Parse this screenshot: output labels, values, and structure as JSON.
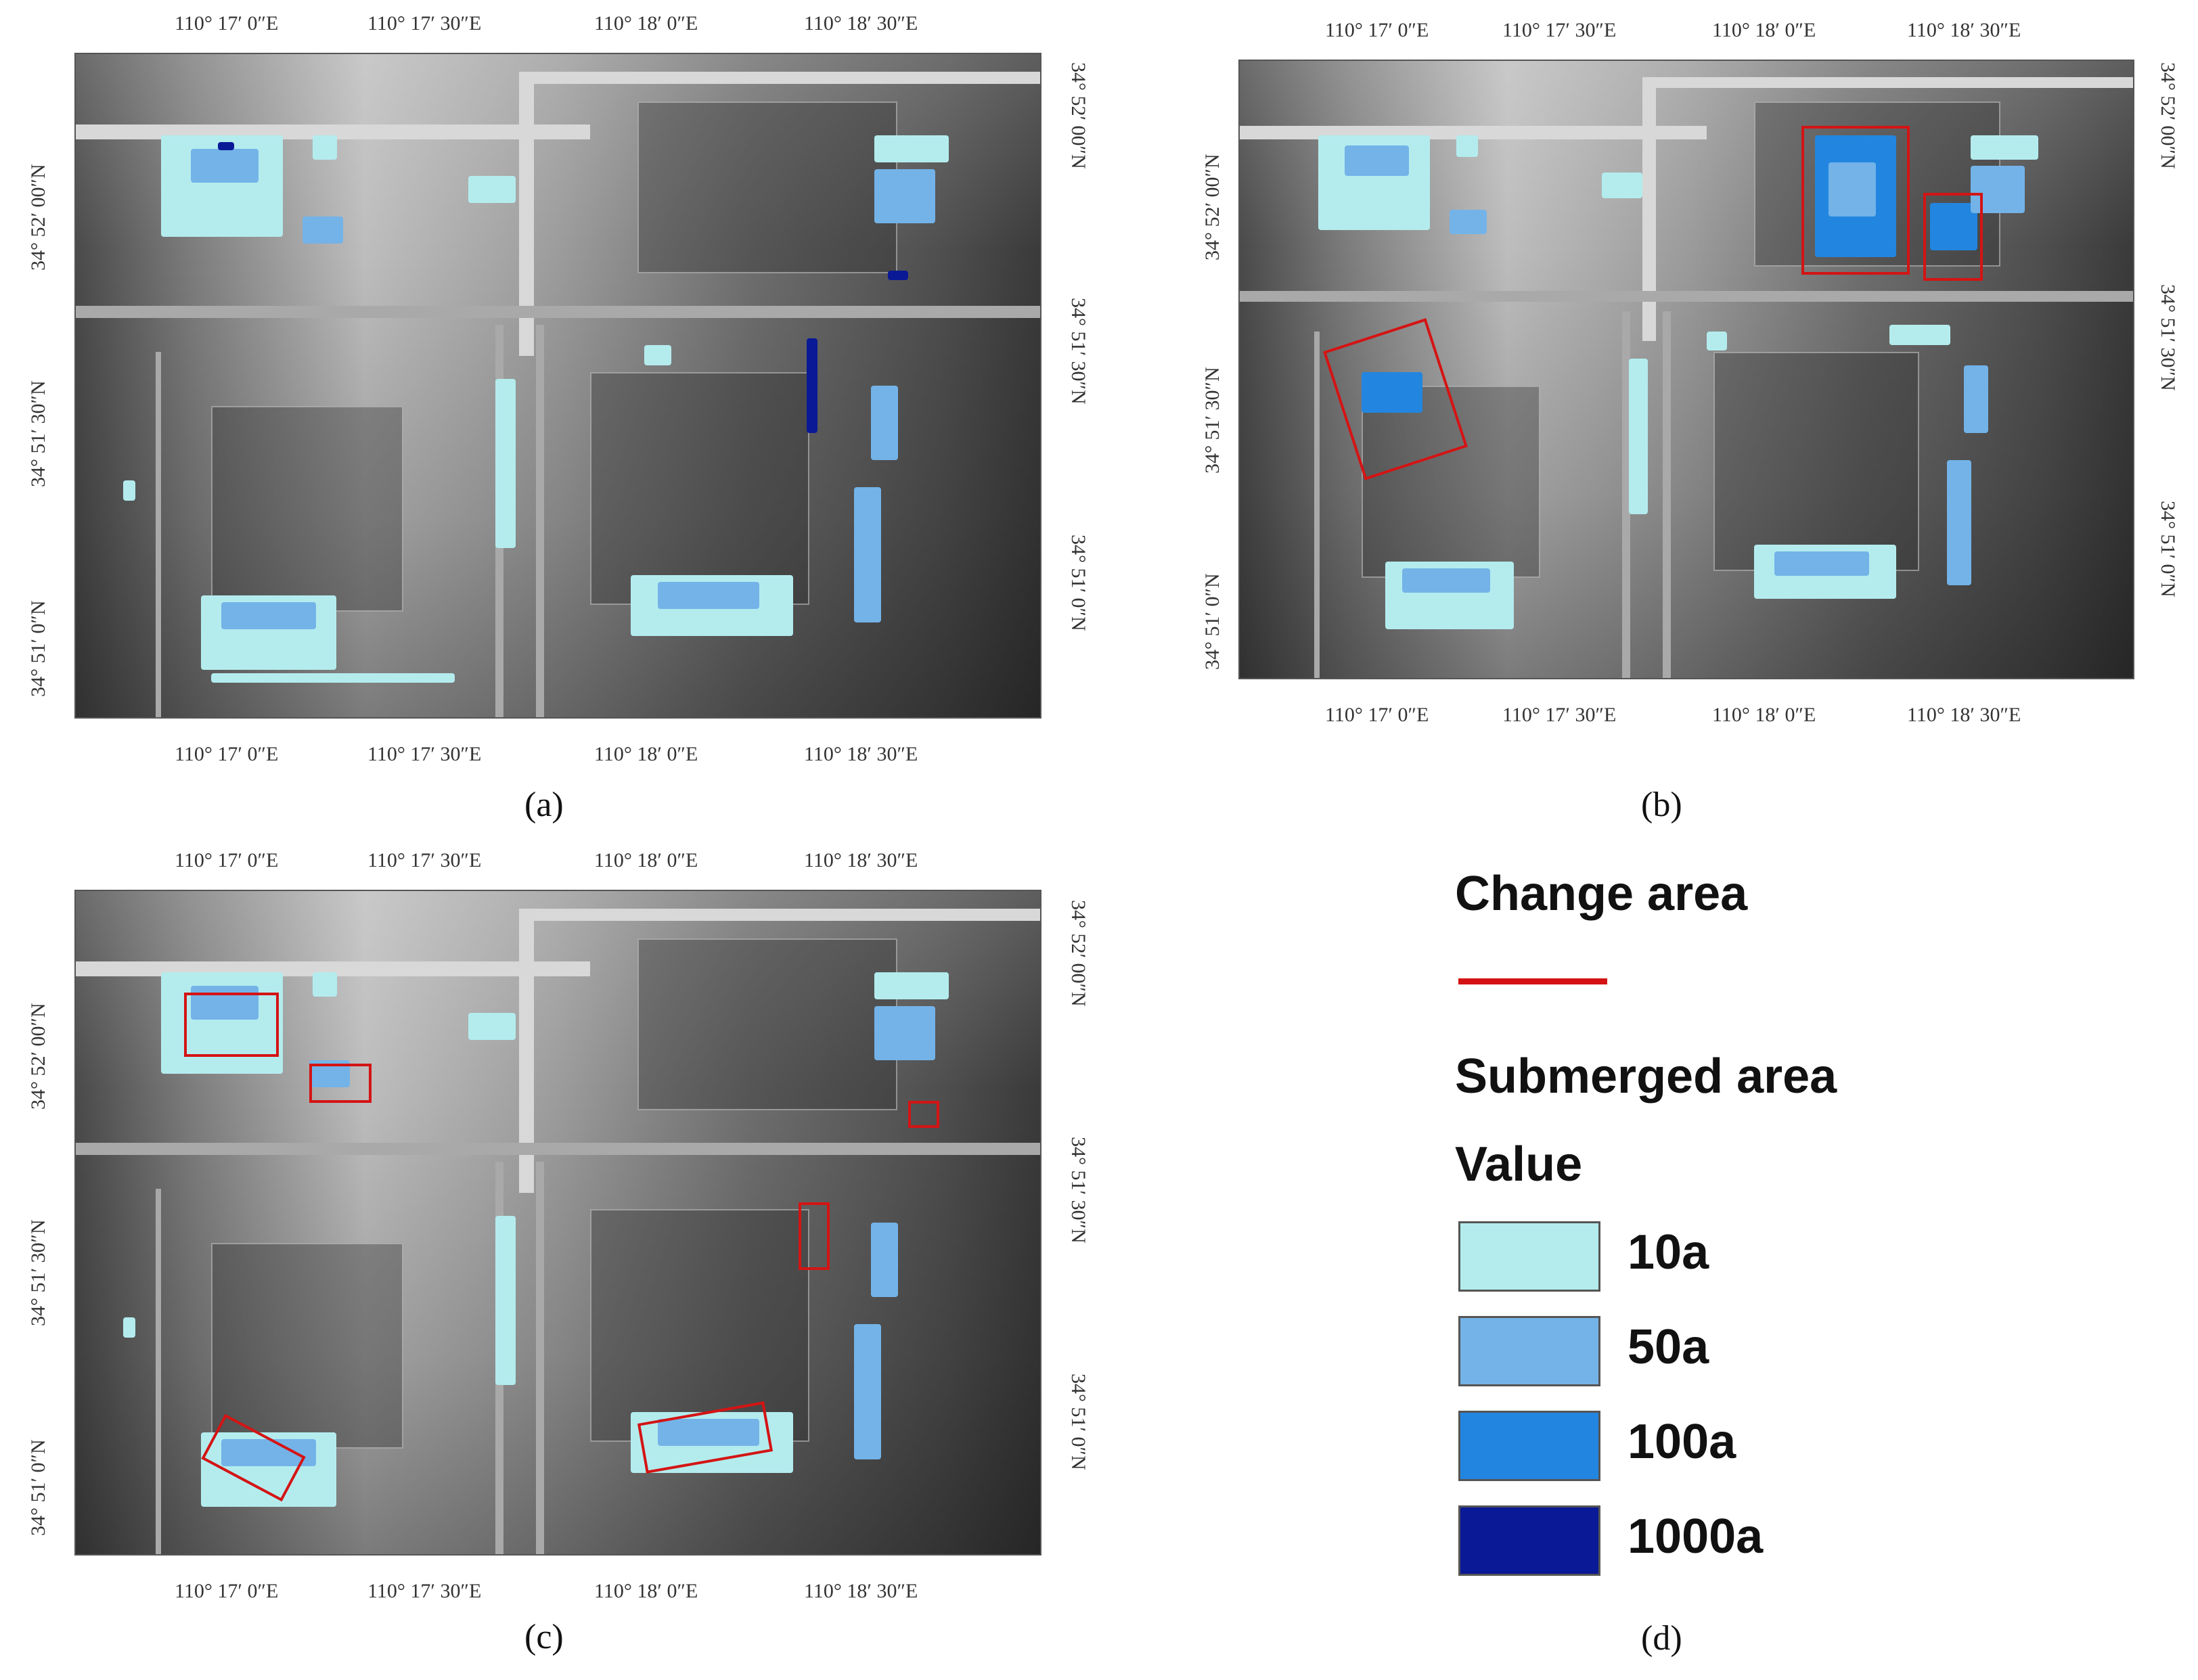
{
  "panels": {
    "a": {
      "caption": "(a)"
    },
    "b": {
      "caption": "(b)"
    },
    "c": {
      "caption": "(c)"
    },
    "d": {
      "caption": "(d)"
    }
  },
  "axes": {
    "x_labels": [
      "110°  17′ 0″E",
      "110°  17′ 30″E",
      "110°  18′ 0″E",
      "110°  18′ 30″E"
    ],
    "y_labels": [
      "34°  52′ 00″N",
      "34°  51′ 30″N",
      "34°  51′ 0″N"
    ]
  },
  "legend": {
    "change_title": "Change area",
    "submerged_title": "Submerged area",
    "value_title": "Value",
    "items": [
      {
        "label": "10a",
        "color": "#b4ecee"
      },
      {
        "label": "50a",
        "color": "#73b3e8"
      },
      {
        "label": "100a",
        "color": "#2286e0"
      },
      {
        "label": "1000a",
        "color": "#0a1996"
      }
    ],
    "change_color": "#d41414"
  }
}
